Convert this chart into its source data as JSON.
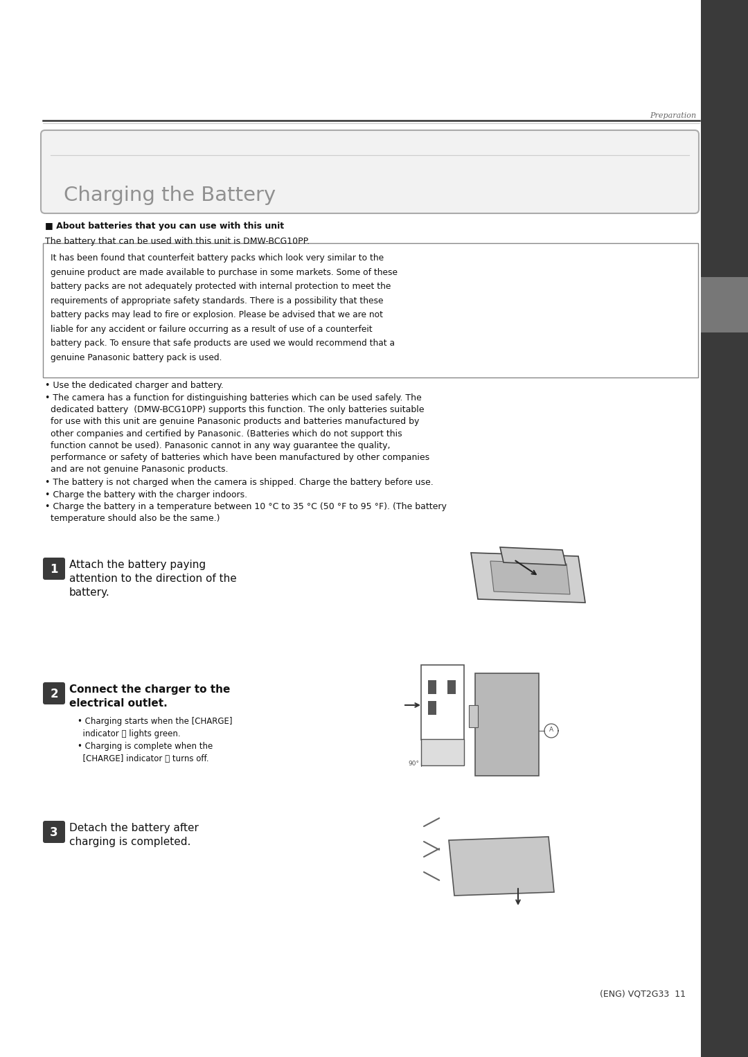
{
  "bg_color": "#ffffff",
  "page_width": 10.8,
  "page_height": 15.26,
  "header_italic": "Preparation",
  "title": "Charging the Battery",
  "about_bold": "■ About batteries that you can use with this unit",
  "about_line2": "The battery that can be used with this unit is DMW-BCG10PP.",
  "warning_box_text": "It has been found that counterfeit battery packs which look very similar to the\ngenuine product are made available to purchase in some markets. Some of these\nbattery packs are not adequately protected with internal protection to meet the\nrequirements of appropriate safety standards. There is a possibility that these\nbattery packs may lead to fire or explosion. Please be advised that we are not\nliable for any accident or failure occurring as a result of use of a counterfeit\nbattery pack. To ensure that safe products are used we would recommend that a\ngenuine Panasonic battery pack is used.",
  "bullet1": "• Use the dedicated charger and battery.",
  "bullet2a": "• The camera has a function for distinguishing batteries which can be used safely. The",
  "bullet2b": "  dedicated battery  (DMW-BCG10PP) supports this function. The only batteries suitable",
  "bullet2c": "  for use with this unit are genuine Panasonic products and batteries manufactured by",
  "bullet2d": "  other companies and certified by Panasonic. (Batteries which do not support this",
  "bullet2e": "  function cannot be used). Panasonic cannot in any way guarantee the quality,",
  "bullet2f": "  performance or safety of batteries which have been manufactured by other companies",
  "bullet2g": "  and are not genuine Panasonic products.",
  "bullet3": "• The battery is not charged when the camera is shipped. Charge the battery before use.",
  "bullet4": "• Charge the battery with the charger indoors.",
  "bullet5a": "• Charge the battery in a temperature between 10 °C to 35 °C (50 °F to 95 °F). (The battery",
  "bullet5b": "  temperature should also be the same.)",
  "step1_num": "1",
  "step1_line1": "Attach the battery paying",
  "step1_line2": "attention to the direction of the",
  "step1_line3": "battery.",
  "step2_num": "2",
  "step2_line1": "Connect the charger to the",
  "step2_line2": "electrical outlet.",
  "step2_b1a": "• Charging starts when the [CHARGE]",
  "step2_b1b": "  indicator Ⓐ lights green.",
  "step2_b2a": "• Charging is complete when the",
  "step2_b2b": "  [CHARGE] indicator Ⓐ turns off.",
  "step3_num": "3",
  "step3_line1": "Detach the battery after",
  "step3_line2": "charging is completed.",
  "footer": "(ENG) VQT2G33  11",
  "sidebar_color": "#3a3a3a",
  "step_num_color": "#3a3a3a",
  "step_num_text_color": "#ffffff",
  "warning_box_border": "#888888",
  "text_color": "#111111",
  "title_text_color": "#909090"
}
